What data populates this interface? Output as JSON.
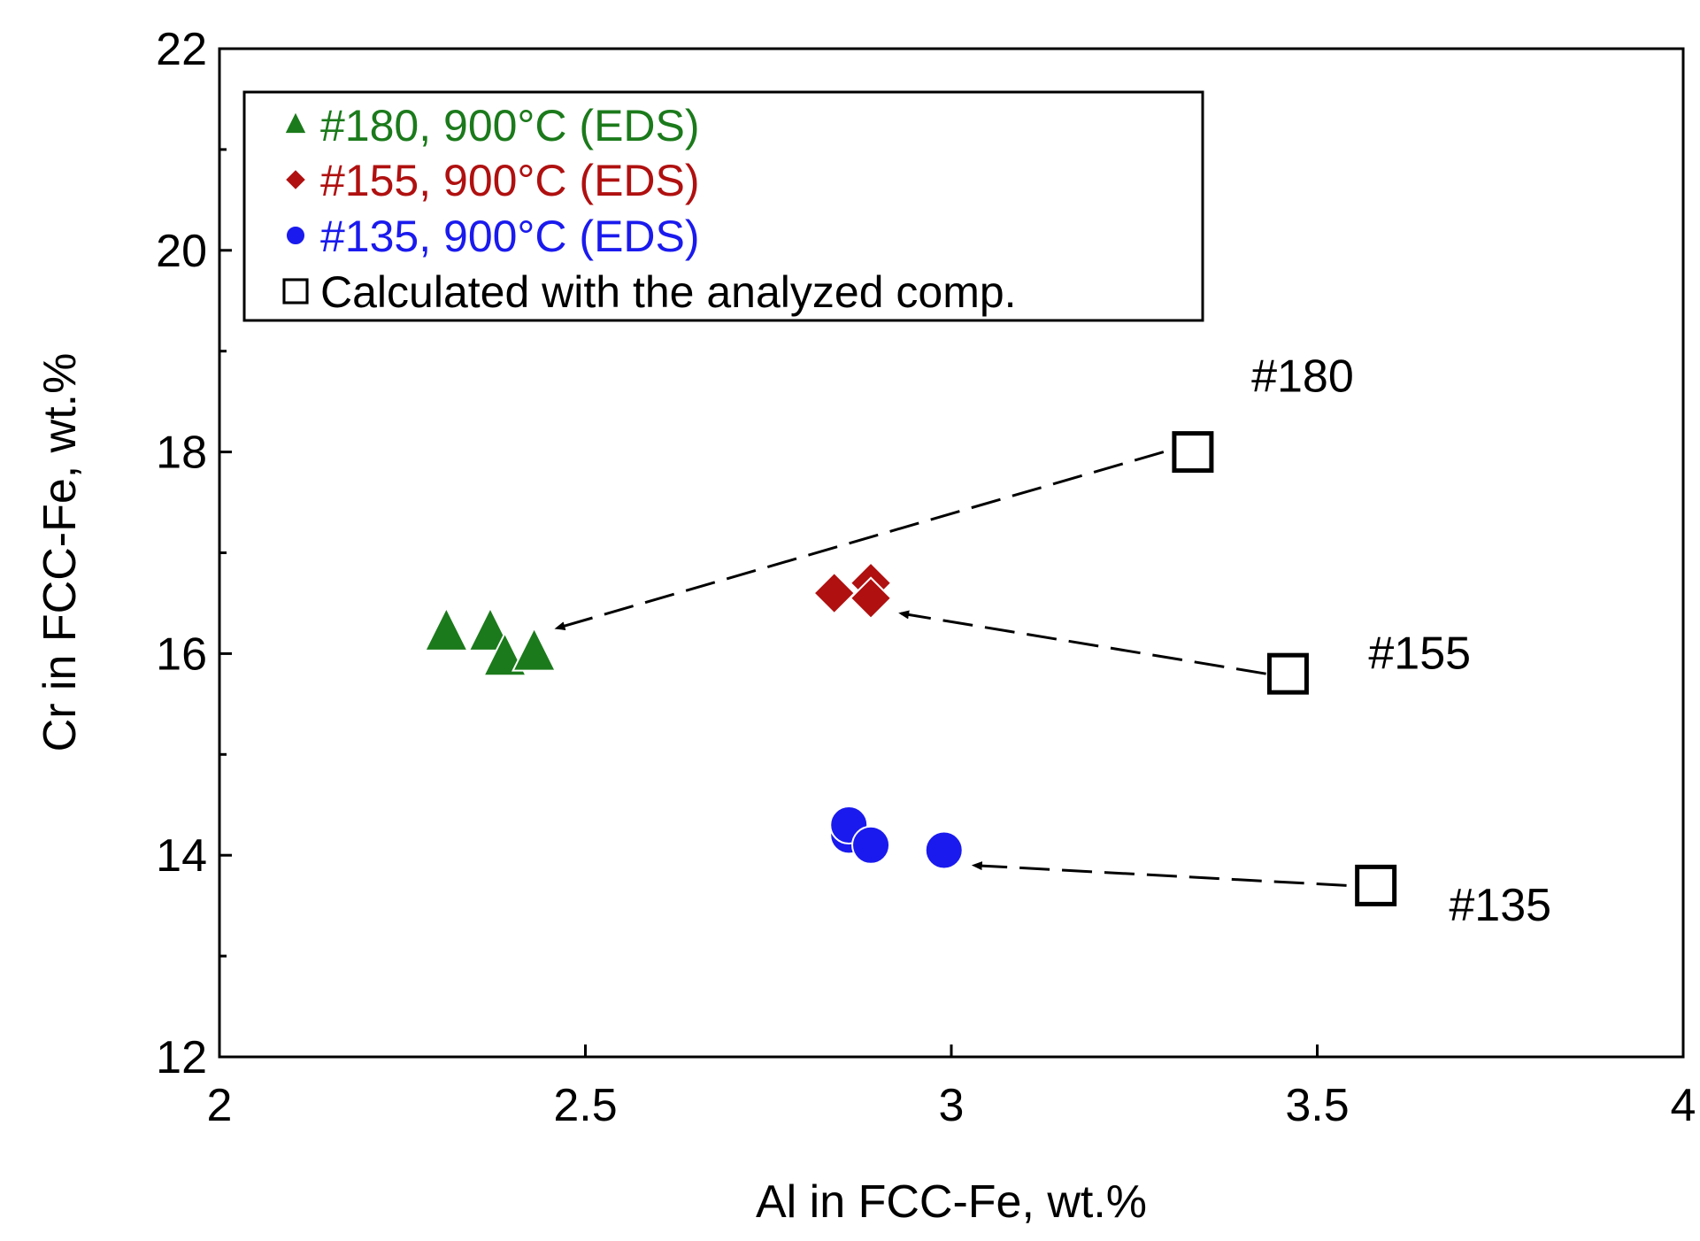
{
  "chart_data": {
    "type": "scatter",
    "title": "",
    "xlabel": "Al in FCC-Fe, wt.%",
    "ylabel": "Cr in FCC-Fe, wt.%",
    "xlim": [
      2,
      4
    ],
    "ylim": [
      12,
      22
    ],
    "xticks": [
      2,
      2.5,
      3,
      3.5,
      4
    ],
    "xtick_labels": [
      "2",
      "2.5",
      "3",
      "3.5",
      "4"
    ],
    "yticks": [
      12,
      14,
      16,
      18,
      20,
      22
    ],
    "ytick_labels": [
      "12",
      "14",
      "16",
      "18",
      "20",
      "22"
    ],
    "grid": false,
    "legend_position": "top-left",
    "series": [
      {
        "name": "#180,  900°C (EDS)",
        "marker": "triangle",
        "color": "#1b7a1b",
        "points": [
          [
            2.31,
            16.2
          ],
          [
            2.37,
            16.2
          ],
          [
            2.39,
            15.95
          ],
          [
            2.43,
            16.0
          ]
        ]
      },
      {
        "name": "#155,  900°C (EDS)",
        "marker": "diamond",
        "color": "#b01010",
        "points": [
          [
            2.84,
            16.6
          ],
          [
            2.89,
            16.7
          ],
          [
            2.89,
            16.55
          ]
        ]
      },
      {
        "name": "#135,  900°C (EDS)",
        "marker": "circle",
        "color": "#1a1aee",
        "points": [
          [
            2.86,
            14.2
          ],
          [
            2.86,
            14.3
          ],
          [
            2.89,
            14.1
          ],
          [
            2.99,
            14.05
          ]
        ]
      },
      {
        "name": "Calculated with the analyzed comp.",
        "marker": "square-open",
        "color": "#000000",
        "points": [
          [
            3.33,
            18.0
          ],
          [
            3.46,
            15.8
          ],
          [
            3.58,
            13.7
          ]
        ]
      }
    ],
    "annotations": [
      {
        "text": "#180",
        "x": 3.41,
        "y": 18.6
      },
      {
        "text": "#155",
        "x": 3.57,
        "y": 15.85
      },
      {
        "text": "#135",
        "x": 3.68,
        "y": 13.35
      }
    ],
    "arrows": [
      {
        "from": [
          3.29,
          18.0
        ],
        "to": [
          2.46,
          16.25
        ]
      },
      {
        "from": [
          3.43,
          15.8
        ],
        "to": [
          2.93,
          16.4
        ]
      },
      {
        "from": [
          3.54,
          13.7
        ],
        "to": [
          3.03,
          13.9
        ]
      }
    ]
  }
}
